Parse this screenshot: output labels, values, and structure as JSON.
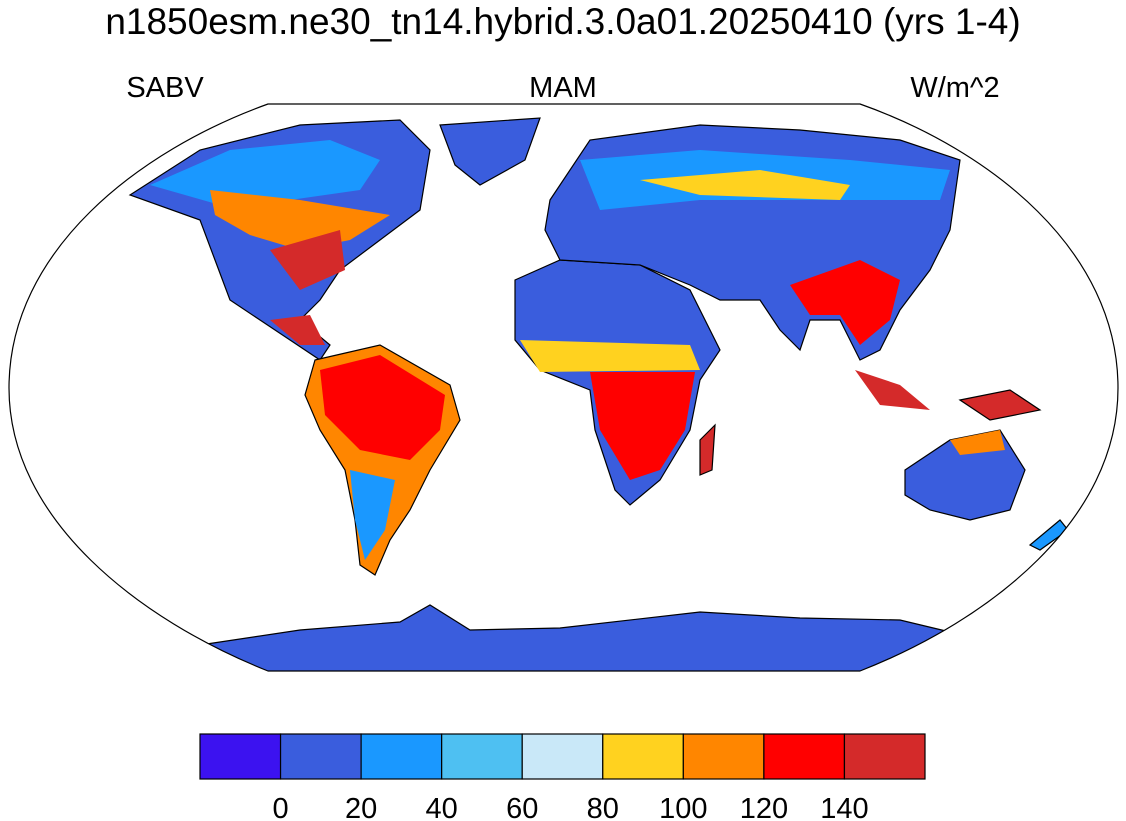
{
  "map": {
    "title": "n1850esm.ne30_tn14.hybrid.3.0a01.20250410 (yrs 1-4)",
    "left_label": "SABV",
    "center_label": "MAM",
    "right_label": "W/m^2",
    "colorbar": {
      "colors": [
        "#3c12f0",
        "#3a5ddd",
        "#1a98ff",
        "#4ec0f2",
        "#c9e8f8",
        "#ffd21f",
        "#ff8600",
        "#ff0000",
        "#d42a2a"
      ],
      "ticks": [
        0,
        20,
        40,
        60,
        80,
        100,
        120,
        140
      ]
    }
  }
}
